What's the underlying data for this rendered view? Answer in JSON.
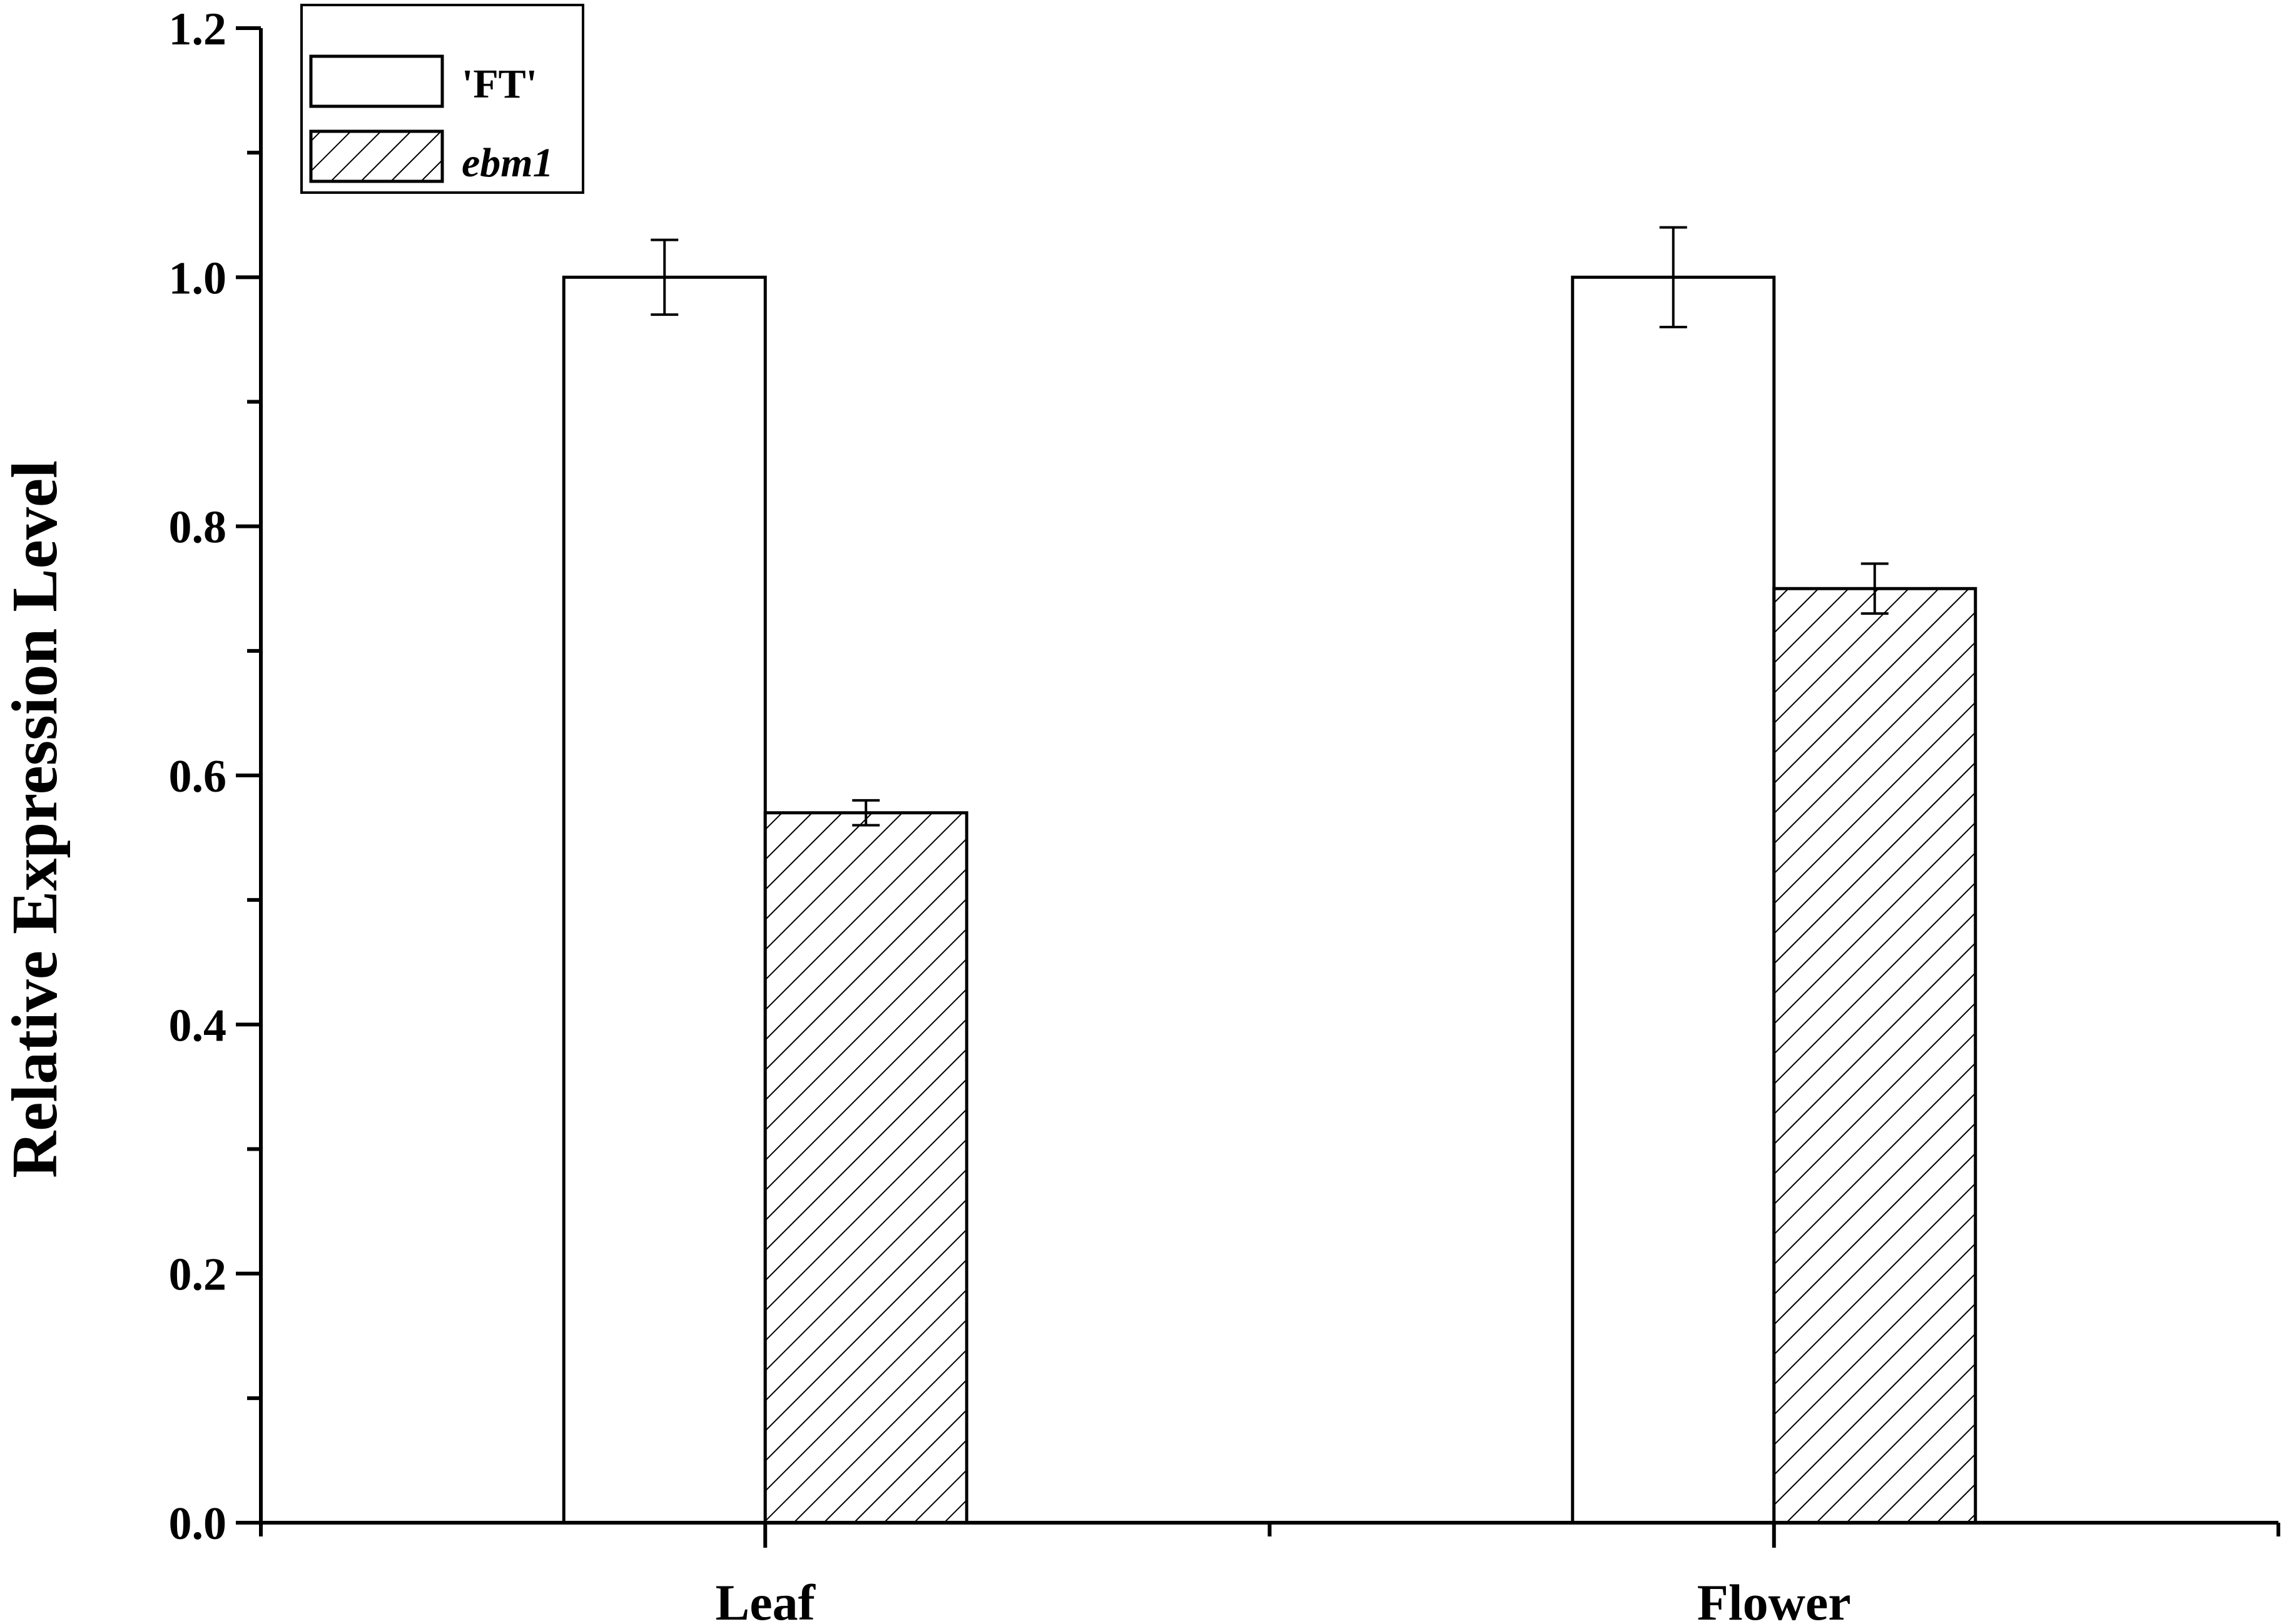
{
  "chart_data": {
    "type": "bar",
    "categories": [
      "Leaf",
      "Flower"
    ],
    "series": [
      {
        "name": "'FT'",
        "values": [
          1.0,
          1.0
        ],
        "errors": [
          0.03,
          0.04
        ],
        "fill": "plain"
      },
      {
        "name": "ebm1",
        "values": [
          0.57,
          0.75
        ],
        "errors": [
          0.01,
          0.02
        ],
        "fill": "hatched",
        "italic": true
      }
    ],
    "ylabel": "Relative Expression Level",
    "xlabel": "",
    "ylim": [
      0,
      1.2
    ],
    "yticks": [
      "0.0",
      "0.2",
      "0.4",
      "0.6",
      "0.8",
      "1.0",
      "1.2"
    ],
    "grid": false,
    "legend_position": "top-left",
    "colors": {
      "axis": "#000000",
      "bar_fill": "#ffffff",
      "hatch": "#000000"
    }
  }
}
